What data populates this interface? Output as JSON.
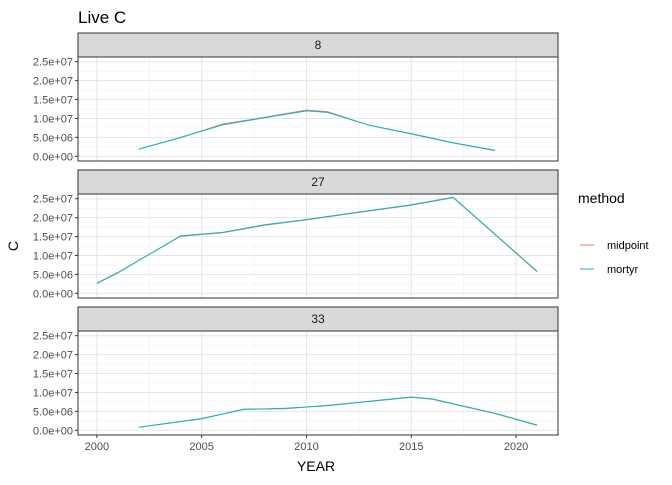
{
  "chart_data": {
    "type": "line",
    "title": "Live C",
    "xlabel": "YEAR",
    "ylabel": "C",
    "xlim": [
      1999.1,
      2022.0
    ],
    "ylim": [
      -1250000,
      26250000
    ],
    "x_ticks": [
      2000,
      2005,
      2010,
      2015,
      2020
    ],
    "x_tick_labels": [
      "2000",
      "2005",
      "2010",
      "2015",
      "2020"
    ],
    "y_ticks": [
      0,
      5000000,
      10000000,
      15000000,
      20000000,
      25000000
    ],
    "y_tick_labels": [
      "0.0e+00",
      "5.0e+06",
      "1.0e+07",
      "1.5e+07",
      "2.0e+07",
      "2.5e+07"
    ],
    "grid": true,
    "facet_variable": "panel",
    "legend": {
      "title": "method",
      "placement": "right",
      "entries": [
        {
          "name": "midpoint",
          "color": "#F8766D"
        },
        {
          "name": "mortyr",
          "color": "#00BFC4"
        }
      ]
    },
    "panels": [
      {
        "label": "8",
        "series": [
          {
            "name": "midpoint",
            "color": "#F8766D",
            "points": [
              [
                2002,
                1900000
              ],
              [
                2004,
                4900000
              ],
              [
                2006,
                8500000
              ],
              [
                2008,
                10300000
              ],
              [
                2010,
                12200000
              ],
              [
                2011,
                11800000
              ],
              [
                2013,
                8200000
              ],
              [
                2015,
                5900000
              ],
              [
                2017,
                3500000
              ],
              [
                2019,
                1500000
              ]
            ]
          },
          {
            "name": "mortyr",
            "color": "#00BFC4",
            "points": [
              [
                2002,
                1900000
              ],
              [
                2004,
                5000000
              ],
              [
                2006,
                8300000
              ],
              [
                2008,
                10200000
              ],
              [
                2010,
                12000000
              ],
              [
                2011,
                11600000
              ],
              [
                2013,
                8200000
              ],
              [
                2015,
                6000000
              ],
              [
                2017,
                3600000
              ],
              [
                2019,
                1600000
              ]
            ]
          }
        ]
      },
      {
        "label": "27",
        "series": [
          {
            "name": "midpoint",
            "color": "#F8766D",
            "points": [
              [
                2000,
                2700000
              ],
              [
                2001,
                5500000
              ],
              [
                2004,
                15100000
              ],
              [
                2006,
                16000000
              ],
              [
                2008,
                18000000
              ],
              [
                2010,
                19400000
              ],
              [
                2012,
                21000000
              ],
              [
                2015,
                23300000
              ],
              [
                2017,
                25300000
              ],
              [
                2021,
                5700000
              ]
            ]
          },
          {
            "name": "mortyr",
            "color": "#00BFC4",
            "points": [
              [
                2000,
                2600000
              ],
              [
                2001,
                5400000
              ],
              [
                2004,
                15200000
              ],
              [
                2006,
                16100000
              ],
              [
                2008,
                18100000
              ],
              [
                2010,
                19500000
              ],
              [
                2012,
                21100000
              ],
              [
                2015,
                23400000
              ],
              [
                2017,
                25400000
              ],
              [
                2021,
                5800000
              ]
            ]
          }
        ]
      },
      {
        "label": "33",
        "series": [
          {
            "name": "midpoint",
            "color": "#F8766D",
            "points": [
              [
                2002,
                800000
              ],
              [
                2005,
                3000000
              ],
              [
                2007,
                5600000
              ],
              [
                2009,
                5700000
              ],
              [
                2011,
                6600000
              ],
              [
                2013,
                7600000
              ],
              [
                2015,
                8700000
              ],
              [
                2016,
                8200000
              ],
              [
                2019,
                4400000
              ],
              [
                2021,
                1300000
              ]
            ]
          },
          {
            "name": "mortyr",
            "color": "#00BFC4",
            "points": [
              [
                2002,
                800000
              ],
              [
                2005,
                3100000
              ],
              [
                2007,
                5500000
              ],
              [
                2009,
                5800000
              ],
              [
                2011,
                6500000
              ],
              [
                2013,
                7700000
              ],
              [
                2015,
                8800000
              ],
              [
                2016,
                8300000
              ],
              [
                2019,
                4500000
              ],
              [
                2021,
                1400000
              ]
            ]
          }
        ]
      }
    ]
  }
}
